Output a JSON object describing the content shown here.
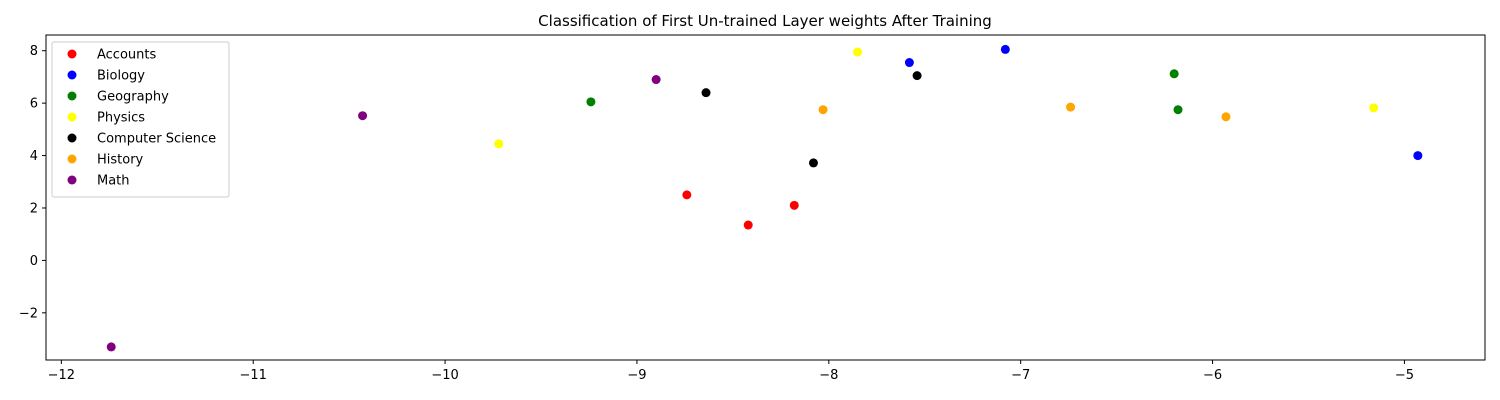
{
  "chart_data": {
    "type": "scatter",
    "title": "Classification of First Un-trained Layer weights After Training",
    "xlabel": "",
    "ylabel": "",
    "xlim": [
      -12.08,
      -4.58
    ],
    "ylim": [
      -3.8,
      8.6
    ],
    "xticks": [
      -12,
      -11,
      -10,
      -9,
      -8,
      -7,
      -6,
      -5
    ],
    "yticks": [
      -2,
      0,
      2,
      4,
      6,
      8
    ],
    "xtick_labels": [
      "−12",
      "−11",
      "−10",
      "−9",
      "−8",
      "−7",
      "−6",
      "−5"
    ],
    "ytick_labels": [
      "−2",
      "0",
      "2",
      "4",
      "6",
      "8"
    ],
    "grid": false,
    "legend_position": "top-left",
    "series": [
      {
        "name": "Accounts",
        "color": "#ff0000",
        "points": [
          [
            -8.74,
            2.5
          ],
          [
            -8.42,
            1.35
          ],
          [
            -8.18,
            2.1
          ]
        ]
      },
      {
        "name": "Biology",
        "color": "#0000ff",
        "points": [
          [
            -7.58,
            7.55
          ],
          [
            -7.08,
            8.05
          ],
          [
            -4.93,
            4.0
          ]
        ]
      },
      {
        "name": "Geography",
        "color": "#008000",
        "points": [
          [
            -9.24,
            6.05
          ],
          [
            -6.2,
            7.12
          ],
          [
            -6.18,
            5.75
          ]
        ]
      },
      {
        "name": "Physics",
        "color": "#ffff00",
        "points": [
          [
            -9.72,
            4.45
          ],
          [
            -7.85,
            7.95
          ],
          [
            -5.16,
            5.82
          ]
        ]
      },
      {
        "name": "Computer Science",
        "color": "#000000",
        "points": [
          [
            -8.64,
            6.4
          ],
          [
            -8.08,
            3.72
          ],
          [
            -7.54,
            7.05
          ]
        ]
      },
      {
        "name": "History",
        "color": "#ffa500",
        "points": [
          [
            -8.03,
            5.75
          ],
          [
            -6.74,
            5.85
          ],
          [
            -5.93,
            5.48
          ]
        ]
      },
      {
        "name": "Math",
        "color": "#800080",
        "points": [
          [
            -11.74,
            -3.3
          ],
          [
            -10.43,
            5.52
          ],
          [
            -8.9,
            6.9
          ]
        ]
      }
    ]
  }
}
